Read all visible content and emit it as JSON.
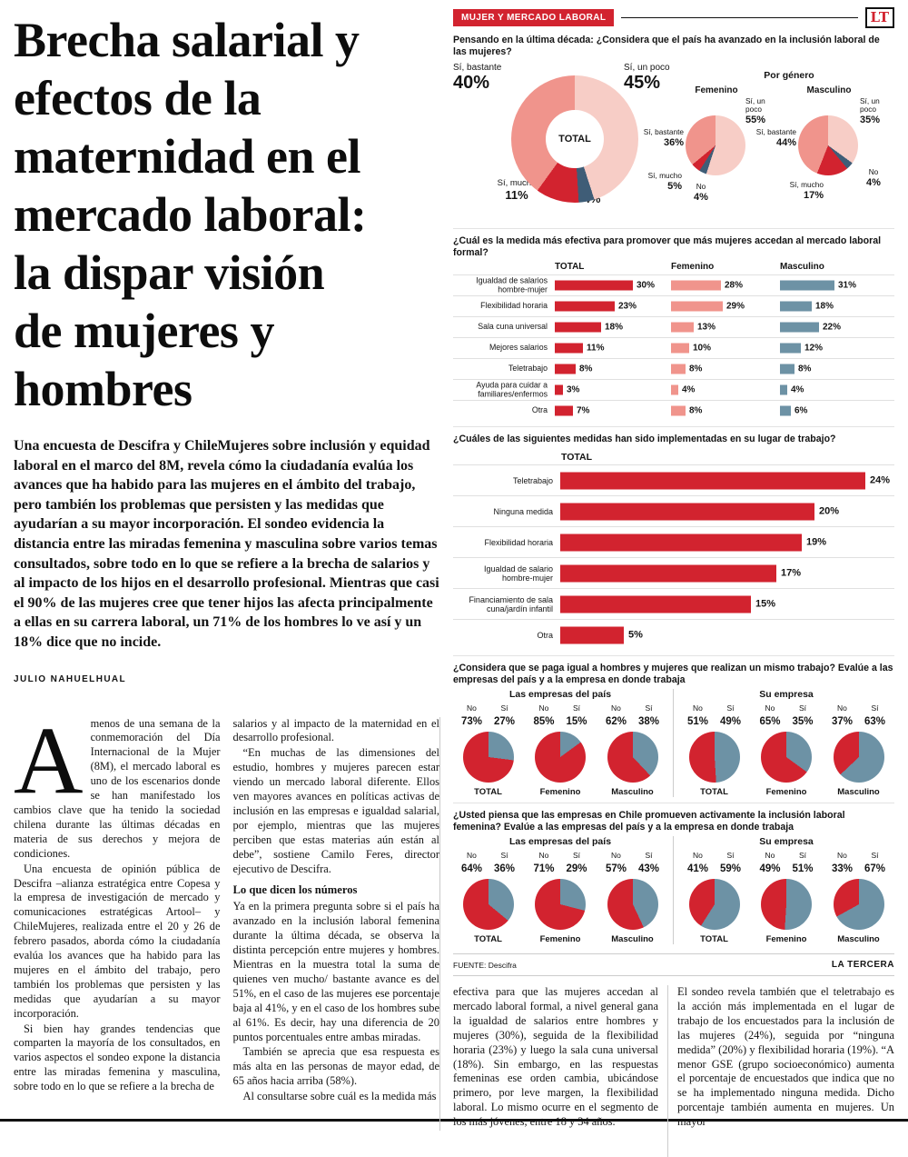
{
  "colors": {
    "red": "#d2232f",
    "salmon": "#f0948c",
    "pink": "#f7cdc6",
    "navy": "#3f5d77",
    "blue": "#6d92a5"
  },
  "article": {
    "headline_lines": [
      "Brecha salarial y",
      "efectos de la",
      "maternidad en el",
      "mercado laboral:",
      "la dispar visión",
      "de mujeres y",
      "hombres"
    ],
    "intro": "Una encuesta de Descifra y ChileMujeres sobre inclusión y equidad laboral en el marco del 8M, revela cómo la ciudadanía evalúa los avances que ha habido para las mujeres en el ámbito del trabajo, pero también los problemas que persisten y las medidas que ayudarían a su mayor incorporación. El sondeo evidencia la distancia entre las miradas femenina y masculina sobre varios temas consultados, sobre todo en lo que se refiere a la brecha de salarios y al impacto de los hijos en el desarrollo profesional. Mientras que casi el 90% de las mujeres cree que tener hijos las afecta principalmente a ellas en su carrera laboral, un 71% de los hombres lo ve así y un 18% dice que no incide.",
    "byline": "JULIO NAHUELHUAL",
    "dropcap": "A",
    "col1": [
      "menos de una semana de la conmemoración del Día Internacional de la Mujer (8M), el mercado laboral es uno de los escenarios donde se han manifestado los cambios clave que ha tenido la sociedad chilena durante las últimas décadas en materia de sus derechos y mejora de condiciones.",
      "Una encuesta de opinión pública de Descifra –alianza estratégica entre Copesa y la empresa de investigación de mercado y comunicaciones estratégicas Artool– y ChileMujeres, realizada entre el 20 y 26 de febrero pasados, aborda cómo la ciudadanía evalúa los avances que ha habido para las mujeres en el ámbito del trabajo, pero también los problemas que persisten y las medidas que ayudarían a su mayor incorporación.",
      "Si bien hay grandes tendencias que comparten la mayoría de los consultados, en varios aspectos el sondeo expone la distancia entre las miradas femenina y masculina, sobre todo en lo que se refiere a la brecha de"
    ],
    "col2a": [
      "salarios y al impacto de la maternidad en el desarrollo profesional.",
      "“En muchas de las dimensiones del estudio, hombres y mujeres parecen estar viendo un mercado laboral diferente. Ellos ven mayores avances en políticas activas de inclusión en las empresas e igualdad salarial, por ejemplo, mientras que las mujeres perciben que estas materias aún están al debe”, sostiene Camilo Feres, director ejecutivo de Descifra."
    ],
    "subhead": "Lo que dicen los números",
    "col2b": [
      "Ya en la primera pregunta sobre si el país ha avanzado en la inclusión laboral femenina durante la última década, se observa la distinta percepción entre mujeres y hombres. Mientras en la muestra total la suma de quienes ven mucho/ bastante avance es del 51%, en el caso de las mujeres ese porcentaje baja al 41%, y en el caso de los hombres sube al 61%. Es decir, hay una diferencia de 20 puntos porcentuales entre ambas miradas.",
      "También se aprecia que esa respuesta es más alta en las personas de mayor edad, de 65 años hacia arriba (58%).",
      "Al consultarse sobre cuál es la medida más"
    ],
    "col3": "efectiva para que las mujeres accedan al mercado laboral formal, a nivel general gana la igualdad de salarios entre hombres y mujeres (30%), seguida de la flexibilidad horaria (23%) y luego la sala cuna universal (18%). Sin embargo, en las respuestas femeninas ese orden cambia, ubicándose primero, por leve margen, la flexibilidad laboral. Lo mismo ocurre en el segmento de los más jóvenes, entre 18 y 34 años.",
    "col4": "El sondeo revela también que el teletrabajo es la acción más implementada en el lugar de trabajo de los encuestados para la inclusión de las mujeres (24%), seguida por “ninguna medida” (20%) y flexibilidad horaria (19%). “A menor GSE (grupo socioeconómico) aumenta el porcentaje de encuestados que indica que no se ha implementado ninguna medida. Dicho porcentaje también aumenta en mujeres. Un mayor"
  },
  "infographic": {
    "kicker": "MUJER Y MERCADO LABORAL",
    "logo": "LT",
    "source": "FUENTE: Descifra",
    "brand": "LA TERCERA"
  },
  "chart_data": [
    {
      "type": "pie",
      "title": "Pensando en la última década: ¿Considera que el país ha avanzado en la inclusión laboral de las mujeres?",
      "subtitle": "Por género",
      "groups": [
        {
          "label": "TOTAL",
          "donut": true,
          "slices": [
            {
              "name": "Sí, un poco",
              "value": 45,
              "text": "45%",
              "color": "pink"
            },
            {
              "name": "No",
              "value": 4,
              "text": "4%",
              "color": "navy"
            },
            {
              "name": "Sí, mucho",
              "value": 11,
              "text": "11%",
              "color": "red"
            },
            {
              "name": "Sí, bastante",
              "value": 40,
              "text": "40%",
              "color": "salmon"
            }
          ]
        },
        {
          "label": "Femenino",
          "slices": [
            {
              "name": "Sí, un poco",
              "value": 55,
              "text": "55%",
              "color": "pink"
            },
            {
              "name": "No",
              "value": 4,
              "text": "4%",
              "color": "navy"
            },
            {
              "name": "Sí, mucho",
              "value": 5,
              "text": "5%",
              "color": "red"
            },
            {
              "name": "Sí, bastante",
              "value": 36,
              "text": "36%",
              "color": "salmon"
            }
          ]
        },
        {
          "label": "Masculino",
          "slices": [
            {
              "name": "Sí, un poco",
              "value": 35,
              "text": "35%",
              "color": "pink"
            },
            {
              "name": "No",
              "value": 4,
              "text": "4%",
              "color": "navy"
            },
            {
              "name": "Sí, mucho",
              "value": 17,
              "text": "17%",
              "color": "red"
            },
            {
              "name": "Sí, bastante",
              "value": 44,
              "text": "44%",
              "color": "salmon"
            }
          ]
        }
      ]
    },
    {
      "type": "bar",
      "title": "¿Cuál es la medida más efectiva para promover que más mujeres accedan al mercado laboral formal?",
      "categories": [
        "Igualdad de salarios hombre-mujer",
        "Flexibilidad horaria",
        "Sala cuna universal",
        "Mejores salarios",
        "Teletrabajo",
        "Ayuda para cuidar a familiares/enfermos",
        "Otra"
      ],
      "series": [
        {
          "name": "TOTAL",
          "color": "red",
          "values": [
            30,
            23,
            18,
            11,
            8,
            3,
            7
          ]
        },
        {
          "name": "Femenino",
          "color": "salmon",
          "values": [
            28,
            29,
            13,
            10,
            8,
            4,
            8
          ]
        },
        {
          "name": "Masculino",
          "color": "blue",
          "values": [
            31,
            18,
            22,
            12,
            8,
            4,
            6
          ]
        }
      ]
    },
    {
      "type": "bar",
      "title": "¿Cuáles de las siguientes medidas han sido implementadas en su lugar de trabajo?",
      "series_label": "TOTAL",
      "categories": [
        "Teletrabajo",
        "Ninguna medida",
        "Flexibilidad horaria",
        "Igualdad de salario hombre-mujer",
        "Financiamiento de sala cuna/jardín infantil",
        "Otra"
      ],
      "values": [
        24,
        20,
        19,
        17,
        15,
        5
      ],
      "color": "red"
    },
    {
      "type": "pie",
      "title": "¿Considera que se paga igual a hombres y mujeres que realizan un mismo trabajo? Evalúe a las empresas del país y a la empresa en donde trabaja",
      "legend": {
        "no": "No",
        "si": "Sí"
      },
      "groups": [
        {
          "label": "Las empresas del país",
          "pies": [
            {
              "name": "TOTAL",
              "no": 73,
              "si": 27
            },
            {
              "name": "Femenino",
              "no": 85,
              "si": 15
            },
            {
              "name": "Masculino",
              "no": 62,
              "si": 38
            }
          ]
        },
        {
          "label": "Su empresa",
          "pies": [
            {
              "name": "TOTAL",
              "no": 51,
              "si": 49
            },
            {
              "name": "Femenino",
              "no": 65,
              "si": 35
            },
            {
              "name": "Masculino",
              "no": 37,
              "si": 63
            }
          ]
        }
      ]
    },
    {
      "type": "pie",
      "title": "¿Usted piensa que las empresas en Chile promueven activamente la inclusión laboral femenina? Evalúe a las empresas del país y a la empresa en donde trabaja",
      "legend": {
        "no": "No",
        "si": "Sí"
      },
      "groups": [
        {
          "label": "Las empresas del país",
          "pies": [
            {
              "name": "TOTAL",
              "no": 64,
              "si": 36
            },
            {
              "name": "Femenino",
              "no": 71,
              "si": 29
            },
            {
              "name": "Masculino",
              "no": 57,
              "si": 43
            }
          ]
        },
        {
          "label": "Su empresa",
          "pies": [
            {
              "name": "TOTAL",
              "no": 41,
              "si": 59
            },
            {
              "name": "Femenino",
              "no": 49,
              "si": 51
            },
            {
              "name": "Masculino",
              "no": 33,
              "si": 67
            }
          ]
        }
      ]
    }
  ]
}
